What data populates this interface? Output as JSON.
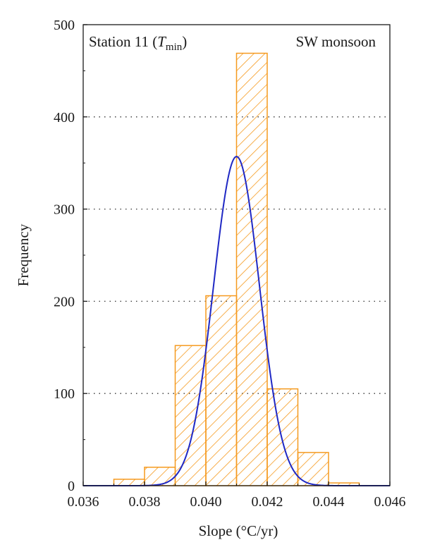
{
  "chart_data": {
    "type": "bar",
    "subtype": "histogram-with-normal-fit",
    "xlabel": "Slope (°C/yr)",
    "ylabel": "Frequency",
    "xlim": [
      0.036,
      0.046
    ],
    "ylim": [
      0,
      500
    ],
    "xticks": [
      "0.036",
      "0.038",
      "0.040",
      "0.042",
      "0.044",
      "0.046"
    ],
    "yticks": [
      "0",
      "100",
      "200",
      "300",
      "400",
      "500"
    ],
    "grid": "horizontal dotted",
    "annotations": {
      "station_prefix": "Station 11 (",
      "station_var": "T",
      "station_sub": "min",
      "station_suffix": ")",
      "season": "SW monsoon"
    },
    "bins": [
      {
        "x0": 0.037,
        "x1": 0.038,
        "value": 7
      },
      {
        "x0": 0.038,
        "x1": 0.039,
        "value": 20
      },
      {
        "x0": 0.039,
        "x1": 0.04,
        "value": 152
      },
      {
        "x0": 0.04,
        "x1": 0.041,
        "value": 206
      },
      {
        "x0": 0.041,
        "x1": 0.042,
        "value": 469
      },
      {
        "x0": 0.042,
        "x1": 0.043,
        "value": 105
      },
      {
        "x0": 0.043,
        "x1": 0.044,
        "value": 36
      },
      {
        "x0": 0.044,
        "x1": 0.045,
        "value": 3
      }
    ],
    "fit": {
      "type": "normal",
      "mean": 0.041,
      "sd": 0.00075,
      "peak": 357
    },
    "colors": {
      "bars": "#f59a1f",
      "curve": "#1f28c4",
      "axis": "#1a1a1a"
    }
  }
}
